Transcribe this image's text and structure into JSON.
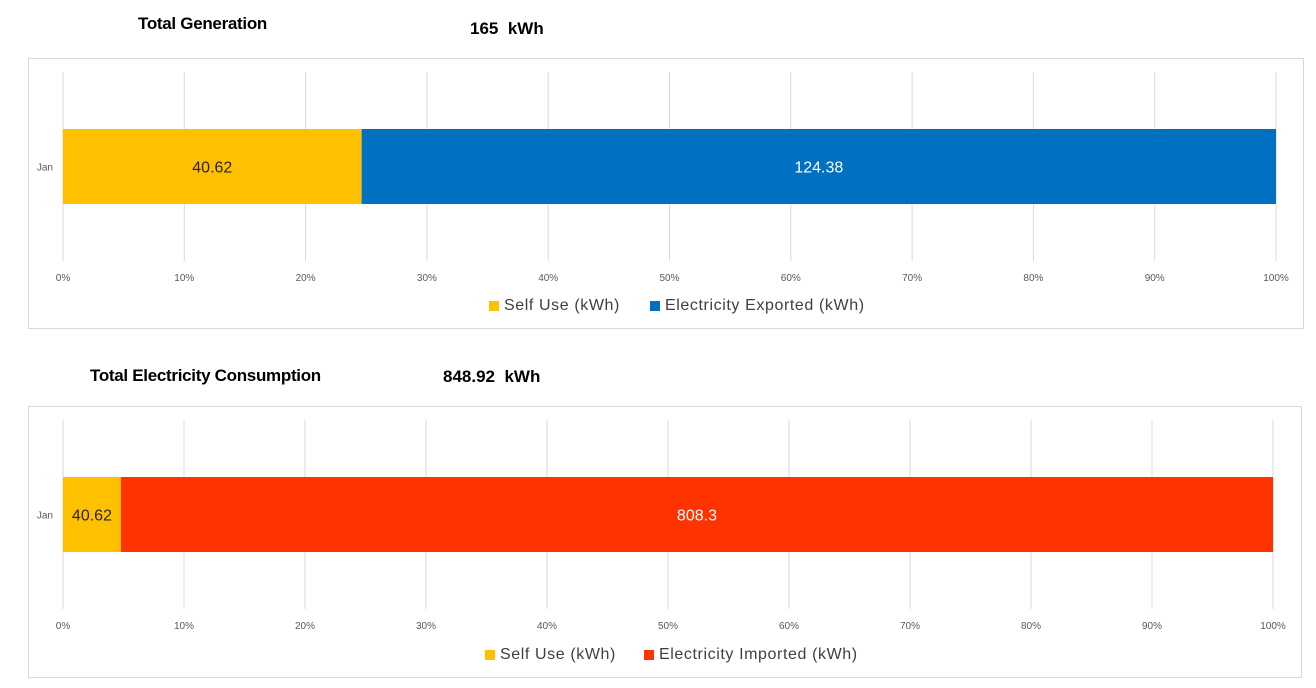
{
  "section1": {
    "title": "Total Generation",
    "total_value": "165",
    "total_unit": "kWh"
  },
  "section2": {
    "title": "Total Electricity Consumption",
    "total_value": "848.92",
    "total_unit": "kWh"
  },
  "colors": {
    "self_use": "#FFC000",
    "exported": "#0070C0",
    "imported": "#FF3300",
    "gridline": "#d9d9d9",
    "tick_text": "#595959"
  },
  "chart_data": [
    {
      "type": "bar",
      "orientation": "horizontal",
      "stacking": "percent",
      "categories": [
        "Jan"
      ],
      "series": [
        {
          "name": "Self Use (kWh)",
          "values": [
            40.62
          ],
          "color": "#FFC000",
          "label_color": "#262626"
        },
        {
          "name": "Electricity Exported (kWh)",
          "values": [
            124.38
          ],
          "color": "#0070C0",
          "label_color": "#ffffff"
        }
      ],
      "x_ticks": [
        "0%",
        "10%",
        "20%",
        "30%",
        "40%",
        "50%",
        "60%",
        "70%",
        "80%",
        "90%",
        "100%"
      ],
      "xlim": [
        0,
        100
      ],
      "grid": true,
      "legend": "bottom"
    },
    {
      "type": "bar",
      "orientation": "horizontal",
      "stacking": "percent",
      "categories": [
        "Jan"
      ],
      "series": [
        {
          "name": "Self Use (kWh)",
          "values": [
            40.62
          ],
          "color": "#FFC000",
          "label_color": "#262626"
        },
        {
          "name": "Electricity Imported (kWh)",
          "values": [
            808.3
          ],
          "color": "#FF3300",
          "label_color": "#ffffff"
        }
      ],
      "x_ticks": [
        "0%",
        "10%",
        "20%",
        "30%",
        "40%",
        "50%",
        "60%",
        "70%",
        "80%",
        "90%",
        "100%"
      ],
      "xlim": [
        0,
        100
      ],
      "grid": true,
      "legend": "bottom"
    }
  ]
}
